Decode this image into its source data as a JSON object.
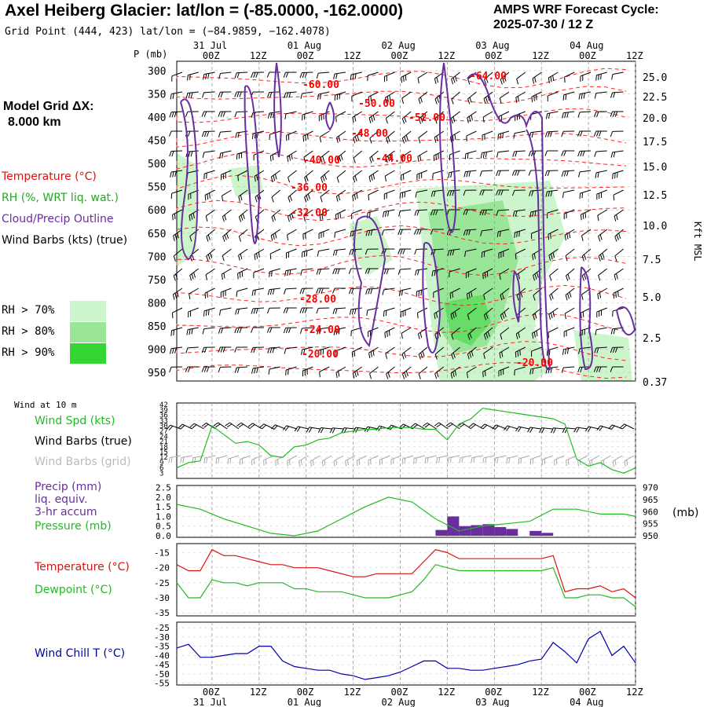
{
  "header": {
    "title": "Axel Heiberg Glacier:  lat/lon = (-85.0000, -162.0000)",
    "subtitle": "Grid Point (444, 423) lat/lon = (−84.9859, −162.4078)",
    "cycle_line1": "AMPS WRF Forecast Cycle:",
    "cycle_line2": "2025-07-30 / 12  Z",
    "grid_label_line1": "Model Grid ΔX:",
    "grid_label_line2": "8.000 km"
  },
  "legend": {
    "temperature": "Temperature (°C)",
    "rh": "RH (%, WRT liq. wat.)",
    "cloud": "Cloud/Precip Outline",
    "wind": "Wind Barbs (kts) (true)",
    "rh70": "RH > 70%",
    "rh80": "RH > 80%",
    "rh90": "RH > 90%"
  },
  "colors": {
    "temperature": "#ff0000",
    "rh_text": "#22aa22",
    "cloud": "#6a2d9f",
    "rh70": "#ccf5cc",
    "rh80": "#99e699",
    "rh90": "#33d633",
    "precip": "#6a2d9f",
    "pressure": "#22bb22",
    "wind_chill": "#0000aa",
    "dewpoint": "#22bb22"
  },
  "time_axis": {
    "date_labels": [
      "31 Jul",
      "01 Aug",
      "02 Aug",
      "03 Aug",
      "04 Aug"
    ],
    "hour_labels": [
      "00Z",
      "12Z",
      "00Z",
      "12Z",
      "00Z",
      "12Z",
      "00Z",
      "12Z",
      "00Z",
      "12Z"
    ]
  },
  "panels": {
    "wind_at_10m": "Wind at 10 m",
    "wind_spd": "Wind Spd (kts)",
    "wind_barbs_true": "Wind Barbs (true)",
    "wind_barbs_grid": "Wind Barbs (grid)",
    "precip_l1": "Precip (mm)",
    "precip_l2": "liq. equiv.",
    "precip_l3": "3-hr accum",
    "pressure": "Pressure (mb)",
    "pressure_unit": "(mb)",
    "temperature": "Temperature (°C)",
    "dewpoint": "Dewpoint (°C)",
    "wind_chill": "Wind Chill T (°C)"
  },
  "chart_data": [
    {
      "type": "contour",
      "title": "",
      "ylabel": "P (mb)",
      "ylabel_right": "Kft MSL",
      "p_ticks": [
        "300",
        "350",
        "400",
        "450",
        "500",
        "550",
        "600",
        "650",
        "700",
        "750",
        "800",
        "850",
        "900",
        "950"
      ],
      "kft_ticks": [
        "25.0",
        "22.5",
        "20.0",
        "17.5",
        "15.0",
        "12.5",
        "10.0",
        "7.5",
        "5.0",
        "2.5",
        "0.37"
      ],
      "temperature_labels": [
        "-60.00",
        "-50.00",
        "-48.00",
        "-52.00",
        "-64.00",
        "-40.00",
        "-44.00",
        "-36.00",
        "-32.00",
        "-28.00",
        "-24.00",
        "-20.00",
        "-20.00"
      ]
    },
    {
      "type": "line",
      "name": "wind_speed_10m",
      "y_ticks": [
        "42",
        "39",
        "36",
        "33",
        "30",
        "27",
        "24",
        "21",
        "18",
        "15",
        "12",
        "9",
        "6",
        "3"
      ],
      "x_hours": [
        0,
        3,
        6,
        9,
        12,
        15,
        18,
        21,
        24,
        27,
        30,
        33,
        36,
        39,
        42,
        45,
        48,
        51,
        54,
        57,
        60,
        63,
        66,
        69,
        72,
        75,
        78,
        81,
        84,
        87,
        90,
        93,
        96,
        99,
        102,
        105,
        108,
        111,
        114,
        117
      ],
      "values": [
        6,
        9,
        10,
        30,
        25,
        20,
        21,
        19,
        13,
        12,
        18,
        19,
        22,
        23,
        26,
        27,
        28,
        28,
        29,
        29,
        29,
        28,
        28,
        22,
        31,
        34,
        40,
        39,
        38,
        37,
        36,
        35,
        34,
        31,
        11,
        7,
        9,
        5,
        3,
        6
      ]
    },
    {
      "type": "bar+line",
      "name": "precip_pressure",
      "y_ticks_left": [
        "2.5",
        "2.0",
        "1.5",
        "1.0",
        "0.5",
        "0.0"
      ],
      "y_ticks_right": [
        "970",
        "965",
        "960",
        "955",
        "950"
      ],
      "precip_bars": [
        {
          "hour": 66,
          "mm": 0.3
        },
        {
          "hour": 69,
          "mm": 1.0
        },
        {
          "hour": 72,
          "mm": 0.5
        },
        {
          "hour": 75,
          "mm": 0.55
        },
        {
          "hour": 78,
          "mm": 0.6
        },
        {
          "hour": 81,
          "mm": 0.45
        },
        {
          "hour": 84,
          "mm": 0.35
        },
        {
          "hour": 90,
          "mm": 0.25
        },
        {
          "hour": 93,
          "mm": 0.15
        }
      ],
      "pressure_x_hours": [
        0,
        6,
        12,
        18,
        24,
        30,
        36,
        42,
        48,
        54,
        60,
        66,
        72,
        78,
        84,
        90,
        96,
        102,
        108,
        114,
        117
      ],
      "pressure_values": [
        963,
        961,
        957,
        954,
        951,
        950,
        952,
        957,
        962,
        966,
        964,
        957,
        952,
        954,
        955,
        956,
        961,
        961,
        959,
        959,
        958
      ]
    },
    {
      "type": "line",
      "name": "temperature_dewpoint",
      "y_ticks": [
        "-15",
        "-20",
        "-25",
        "-30",
        "-35"
      ],
      "x_hours": [
        0,
        3,
        6,
        9,
        12,
        15,
        18,
        21,
        24,
        27,
        30,
        33,
        36,
        39,
        42,
        45,
        48,
        51,
        54,
        57,
        60,
        63,
        66,
        69,
        72,
        75,
        78,
        81,
        84,
        87,
        90,
        93,
        96,
        99,
        102,
        105,
        108,
        111,
        114,
        117
      ],
      "series": [
        {
          "name": "Temperature",
          "values": [
            -19,
            -21,
            -21,
            -14,
            -16,
            -16,
            -17,
            -18,
            -19,
            -19,
            -20,
            -20,
            -20,
            -21,
            -22,
            -23,
            -23,
            -22,
            -22,
            -22,
            -22,
            -18,
            -14,
            -15,
            -17,
            -17,
            -17,
            -17,
            -17,
            -17,
            -17,
            -17,
            -16,
            -28,
            -27,
            -27,
            -26,
            -28,
            -27,
            -30
          ]
        },
        {
          "name": "Dewpoint",
          "values": [
            -25,
            -30,
            -30,
            -24,
            -25,
            -25,
            -26,
            -25,
            -25,
            -25,
            -27,
            -27,
            -28,
            -28,
            -28,
            -29,
            -30,
            -30,
            -30,
            -29,
            -28,
            -24,
            -19,
            -20,
            -21,
            -21,
            -21,
            -21,
            -21,
            -21,
            -21,
            -21,
            -20,
            -30,
            -30,
            -29,
            -29,
            -30,
            -30,
            -33
          ]
        }
      ]
    },
    {
      "type": "line",
      "name": "wind_chill",
      "y_ticks": [
        "-25",
        "-30",
        "-35",
        "-40",
        "-45",
        "-50",
        "-55"
      ],
      "x_hours": [
        0,
        3,
        6,
        9,
        12,
        15,
        18,
        21,
        24,
        27,
        30,
        33,
        36,
        39,
        42,
        45,
        48,
        51,
        54,
        57,
        60,
        63,
        66,
        69,
        72,
        75,
        78,
        81,
        84,
        87,
        90,
        93,
        96,
        99,
        102,
        105,
        108,
        111,
        114,
        117
      ],
      "values": [
        -36,
        -34,
        -41,
        -41,
        -40,
        -39,
        -39,
        -35,
        -35,
        -43,
        -46,
        -47,
        -48,
        -48,
        -50,
        -51,
        -53,
        -52,
        -51,
        -49,
        -46,
        -43,
        -43,
        -47,
        -47,
        -48,
        -48,
        -47,
        -46,
        -45,
        -43,
        -42,
        -33,
        -38,
        -44,
        -31,
        -27,
        -40,
        -35,
        -44
      ]
    }
  ]
}
